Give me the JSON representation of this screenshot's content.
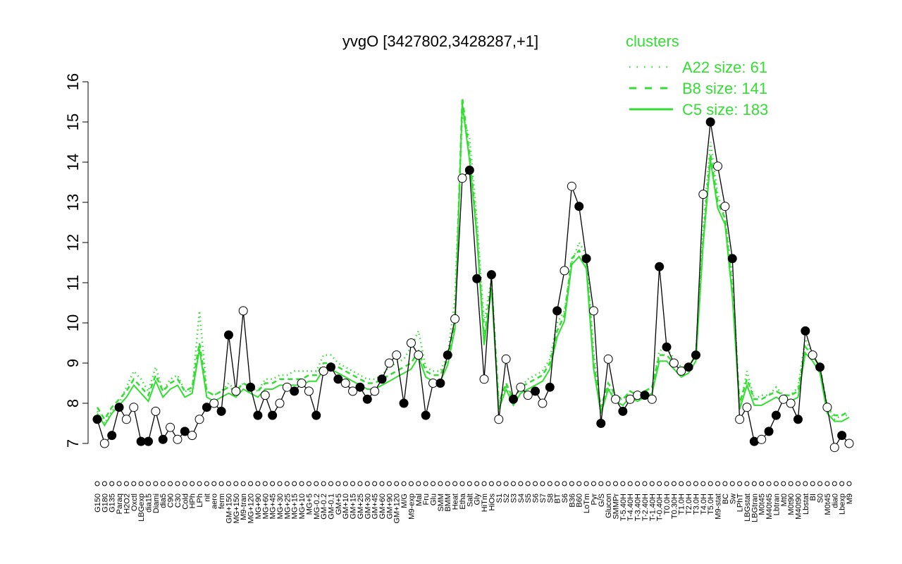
{
  "chart_data": {
    "type": "line",
    "title": "yvgO [3427802,3428287,+1]",
    "xlabel": "",
    "ylabel": "",
    "ylim": [
      7,
      16
    ],
    "yticks": [
      "7",
      "8",
      "9",
      "10",
      "11",
      "12",
      "13",
      "14",
      "15",
      "16"
    ],
    "grid": false,
    "legend": {
      "title": "clusters",
      "placement": "top-right",
      "entries": [
        {
          "label": "A22 size: 61",
          "style": "dotted"
        },
        {
          "label": "B8 size: 141",
          "style": "dashed"
        },
        {
          "label": "C5 size: 183",
          "style": "solid"
        }
      ]
    },
    "x_tick_labels": [
      "G150",
      "G180",
      "G135",
      "Paraq",
      "H2O2",
      "Oxctl",
      "LBGexp",
      "dia15",
      "Diami",
      "dia5",
      "C90",
      "C30",
      "Cold",
      "HPh",
      "LPh",
      "nit",
      "aero",
      "ferm",
      "GM+150",
      "MG+150",
      "M9-tran",
      "MG+120",
      "MG+90",
      "MG+60",
      "MG+45",
      "MG+30",
      "MG+25",
      "MG+15",
      "MG+10",
      "MG+5",
      "MG-0.2",
      "GM-0.2",
      "GM-0.1",
      "GM+5",
      "GM+10",
      "GM+15",
      "GM+25",
      "GM+30",
      "GM+45",
      "GM+60",
      "GM+90",
      "GM+120",
      "M/G",
      "M9-exp",
      "Mal",
      "Fru",
      "Glu",
      "SMM",
      "BMM",
      "Heat",
      "Etha",
      "Salt",
      "Gly",
      "HiTm",
      "HiOs",
      "S1",
      "S2",
      "S3",
      "S4",
      "S5",
      "S6",
      "S7",
      "S8",
      "BT",
      "S6",
      "B36",
      "B60",
      "LoTm",
      "Pyr",
      "G/S",
      "Glucon",
      "SMMPr",
      "T-5.40H",
      "T-4.40H",
      "T-3.40H",
      "T-2.40H",
      "T-1.40H",
      "T-0.40H",
      "T0.0H",
      "T0.30H",
      "T1.0H",
      "T2.0H",
      "T3.0H",
      "T4.0H",
      "T5.0H",
      "M9-stat",
      "BC",
      "Sw",
      "LPhT",
      "LBGstat",
      "LBGtran",
      "M0t45",
      "M40t45",
      "Lbtran",
      "Mt0",
      "M0t90",
      "M40t90",
      "Lbstat",
      "BI",
      "S0",
      "M0t45",
      "dia0",
      "Lbexp",
      "M9"
    ],
    "series": [
      {
        "name": "C5 size: 183",
        "values": [
          7.6,
          7.0,
          7.2,
          7.9,
          7.6,
          7.9,
          7.05,
          7.05,
          7.8,
          7.1,
          7.4,
          7.1,
          7.3,
          7.2,
          7.6,
          7.9,
          8.0,
          7.8,
          9.7,
          8.3,
          10.3,
          8.4,
          7.7,
          8.2,
          7.7,
          8.0,
          8.4,
          8.3,
          8.5,
          8.3,
          7.7,
          8.8,
          8.9,
          8.6,
          8.5,
          8.3,
          8.4,
          8.1,
          8.3,
          8.6,
          9.0,
          9.2,
          8.0,
          9.5,
          9.2,
          7.7,
          8.5,
          8.5,
          9.2,
          10.1,
          13.6,
          13.8,
          11.1,
          8.6,
          11.2,
          7.6,
          9.1,
          8.1,
          8.4,
          8.2,
          8.3,
          8.0,
          8.4,
          10.3,
          11.3,
          13.4,
          12.9,
          11.6,
          10.3,
          7.5,
          9.1,
          8.1,
          7.8,
          8.1,
          8.2,
          8.2,
          8.1,
          11.4,
          9.4,
          9.0,
          8.8,
          8.9,
          9.2,
          13.2,
          15.0,
          13.9,
          12.9,
          11.6,
          7.6,
          7.9,
          7.05,
          7.1,
          7.3,
          7.7,
          8.1,
          8.0,
          7.6,
          9.8,
          9.2,
          8.9,
          7.9,
          6.9,
          7.2,
          7.0
        ],
        "markers": "mixed-filled-open"
      },
      {
        "name": "B8 size: 141",
        "values": [
          7.9,
          7.6,
          7.9,
          8.1,
          8.3,
          8.6,
          8.4,
          8.2,
          8.7,
          8.3,
          8.5,
          8.6,
          8.3,
          8.4,
          9.5,
          8.3,
          8.2,
          8.3,
          8.4,
          8.3,
          8.5,
          8.4,
          8.3,
          8.5,
          8.5,
          8.6,
          8.6,
          8.6,
          8.6,
          8.7,
          8.7,
          9.0,
          9.0,
          8.9,
          8.8,
          8.7,
          8.6,
          8.5,
          8.5,
          8.6,
          8.7,
          8.8,
          8.9,
          9.0,
          9.3,
          8.8,
          8.7,
          8.7,
          9.1,
          10.0,
          15.6,
          14.2,
          12.3,
          9.6,
          11.0,
          8.0,
          8.5,
          8.1,
          8.4,
          8.5,
          8.6,
          8.7,
          9.0,
          9.8,
          10.2,
          11.6,
          11.8,
          11.5,
          9.0,
          7.9,
          8.5,
          8.2,
          8.1,
          8.3,
          8.2,
          8.3,
          8.4,
          9.2,
          9.2,
          9.0,
          8.8,
          8.9,
          9.2,
          12.1,
          14.2,
          13.0,
          12.6,
          10.8,
          8.0,
          8.6,
          8.1,
          8.1,
          8.2,
          8.3,
          8.2,
          8.2,
          8.3,
          9.4,
          9.2,
          8.9,
          7.9,
          7.7,
          7.7,
          7.8
        ],
        "markers": "none"
      },
      {
        "name": "A22 size: 61",
        "values": [
          7.8,
          7.5,
          7.8,
          8.0,
          8.4,
          8.8,
          8.6,
          8.3,
          8.9,
          8.3,
          8.6,
          8.7,
          8.3,
          8.3,
          10.3,
          8.3,
          8.2,
          8.3,
          8.5,
          8.3,
          8.5,
          8.4,
          8.3,
          8.6,
          8.6,
          8.7,
          8.7,
          8.8,
          8.8,
          8.8,
          8.8,
          9.2,
          9.2,
          9.0,
          8.9,
          8.8,
          8.7,
          8.6,
          8.6,
          8.7,
          8.9,
          9.0,
          9.1,
          9.4,
          9.8,
          8.9,
          8.8,
          8.8,
          9.2,
          10.6,
          15.2,
          14.6,
          12.6,
          10.0,
          11.1,
          8.0,
          8.4,
          8.0,
          8.4,
          8.6,
          8.7,
          8.8,
          9.1,
          10.0,
          10.3,
          11.5,
          12.0,
          11.7,
          9.3,
          7.8,
          8.4,
          8.1,
          8.1,
          8.3,
          8.2,
          8.3,
          8.4,
          9.3,
          9.4,
          9.1,
          8.9,
          8.9,
          9.2,
          12.4,
          14.5,
          13.2,
          12.6,
          11.2,
          7.9,
          8.8,
          8.1,
          8.2,
          8.2,
          8.4,
          8.2,
          8.2,
          8.4,
          9.6,
          9.2,
          8.9,
          7.9,
          7.6,
          7.7,
          7.7
        ],
        "markers": "none"
      }
    ],
    "colors": {
      "c5_line": "#000000",
      "cluster_line": "#33dd33",
      "legend_text": "#33dd33",
      "marker_fill_open": "#ffffff",
      "marker_fill_filled": "#000000"
    }
  }
}
